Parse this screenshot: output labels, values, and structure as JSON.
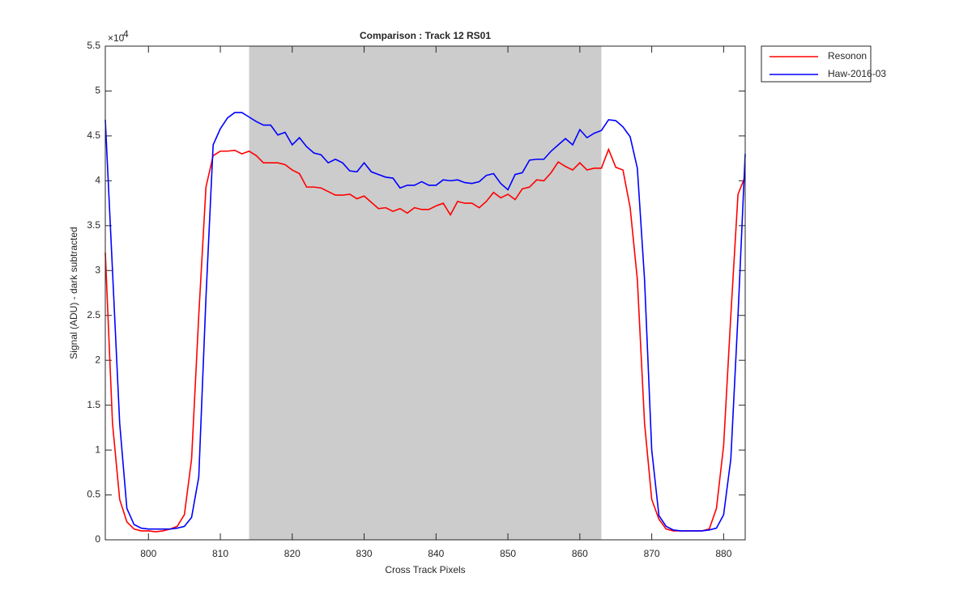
{
  "chart_data": {
    "type": "line",
    "title": "Comparison : Track 12  RS01",
    "xlabel": "Cross Track Pixels",
    "ylabel": "Signal (ADU) - dark subtracted",
    "y_scale_base": "×10",
    "y_scale_exponent": "4",
    "x": [
      794,
      795,
      796,
      797,
      798,
      799,
      800,
      801,
      802,
      803,
      804,
      805,
      806,
      807,
      808,
      809,
      810,
      811,
      812,
      813,
      814,
      815,
      816,
      817,
      818,
      819,
      820,
      821,
      822,
      823,
      824,
      825,
      826,
      827,
      828,
      829,
      830,
      831,
      832,
      833,
      834,
      835,
      836,
      837,
      838,
      839,
      840,
      841,
      842,
      843,
      844,
      845,
      846,
      847,
      848,
      849,
      850,
      851,
      852,
      853,
      854,
      855,
      856,
      857,
      858,
      859,
      860,
      861,
      862,
      863,
      864,
      865,
      866,
      867,
      868,
      869,
      870,
      871,
      872,
      873,
      874,
      875,
      876,
      877,
      878,
      879,
      880,
      881,
      882,
      883
    ],
    "series": [
      {
        "name": "Resonon",
        "color": "#ff0000",
        "values": [
          3.2,
          1.3,
          0.45,
          0.2,
          0.12,
          0.1,
          0.1,
          0.09,
          0.1,
          0.12,
          0.15,
          0.28,
          0.9,
          2.5,
          3.93,
          4.28,
          4.33,
          4.33,
          4.34,
          4.3,
          4.33,
          4.28,
          4.2,
          4.2,
          4.2,
          4.18,
          4.12,
          4.08,
          3.93,
          3.93,
          3.92,
          3.88,
          3.84,
          3.84,
          3.85,
          3.8,
          3.83,
          3.76,
          3.69,
          3.7,
          3.66,
          3.69,
          3.64,
          3.7,
          3.68,
          3.68,
          3.72,
          3.75,
          3.62,
          3.77,
          3.75,
          3.75,
          3.7,
          3.77,
          3.87,
          3.81,
          3.85,
          3.79,
          3.91,
          3.93,
          4.01,
          4.0,
          4.09,
          4.21,
          4.16,
          4.12,
          4.2,
          4.12,
          4.14,
          4.14,
          4.35,
          4.15,
          4.12,
          3.7,
          2.9,
          1.3,
          0.45,
          0.23,
          0.12,
          0.1,
          0.1,
          0.1,
          0.1,
          0.1,
          0.12,
          0.35,
          1.05,
          2.5,
          3.85,
          4.05
        ]
      },
      {
        "name": "Haw-2016-03",
        "color": "#0000ff",
        "values": [
          4.68,
          3.0,
          1.3,
          0.35,
          0.17,
          0.13,
          0.12,
          0.12,
          0.12,
          0.12,
          0.13,
          0.15,
          0.25,
          0.7,
          2.7,
          4.4,
          4.58,
          4.7,
          4.76,
          4.76,
          4.71,
          4.66,
          4.62,
          4.62,
          4.51,
          4.54,
          4.4,
          4.48,
          4.38,
          4.31,
          4.29,
          4.2,
          4.24,
          4.2,
          4.11,
          4.1,
          4.2,
          4.1,
          4.07,
          4.04,
          4.03,
          3.92,
          3.95,
          3.95,
          3.99,
          3.95,
          3.95,
          4.01,
          4.0,
          4.01,
          3.98,
          3.97,
          3.99,
          4.06,
          4.08,
          3.97,
          3.9,
          4.07,
          4.09,
          4.23,
          4.24,
          4.24,
          4.33,
          4.4,
          4.47,
          4.4,
          4.57,
          4.48,
          4.53,
          4.56,
          4.68,
          4.67,
          4.6,
          4.49,
          4.14,
          2.9,
          1.0,
          0.27,
          0.15,
          0.11,
          0.1,
          0.1,
          0.1,
          0.1,
          0.11,
          0.13,
          0.28,
          0.9,
          2.5,
          4.3
        ]
      }
    ],
    "shaded_span": [
      814,
      863
    ],
    "shaded_color": "#cccccc",
    "xlim": [
      794,
      883
    ],
    "xticks": [
      800,
      810,
      820,
      830,
      840,
      850,
      860,
      870,
      880
    ],
    "ylim": [
      0,
      5.5
    ],
    "yticks": [
      0,
      0.5,
      1,
      1.5,
      2,
      2.5,
      3,
      3.5,
      4,
      4.5,
      5,
      5.5
    ],
    "legend": "outside-top-right"
  }
}
